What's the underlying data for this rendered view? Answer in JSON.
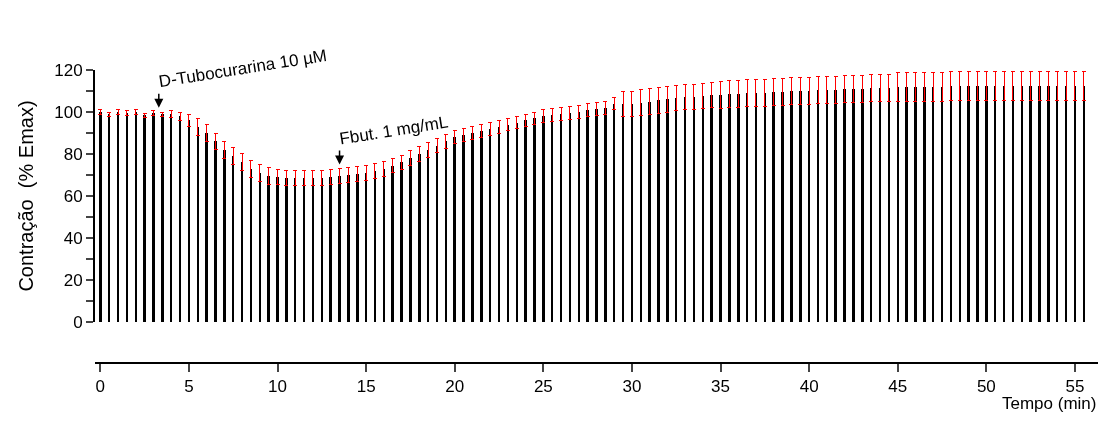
{
  "chart_data": {
    "type": "bar",
    "xlabel": "Tempo (min)",
    "ylabel": "Contração  (% Emax)",
    "x": [
      0,
      0.5,
      1,
      1.5,
      2,
      2.5,
      3,
      3.5,
      4,
      4.5,
      5,
      5.5,
      6,
      6.5,
      7,
      7.5,
      8,
      8.5,
      9,
      9.5,
      10,
      10.5,
      11,
      11.5,
      12,
      12.5,
      13,
      13.5,
      14,
      14.5,
      15,
      15.5,
      16,
      16.5,
      17,
      17.5,
      18,
      18.5,
      19,
      19.5,
      20,
      20.5,
      21,
      21.5,
      22,
      22.5,
      23,
      23.5,
      24,
      24.5,
      25,
      25.5,
      26,
      26.5,
      27,
      27.5,
      28,
      28.5,
      29,
      29.5,
      30,
      30.5,
      31,
      31.5,
      32,
      32.5,
      33,
      33.5,
      34,
      34.5,
      35,
      35.5,
      36,
      36.5,
      37,
      37.5,
      38,
      38.5,
      39,
      39.5,
      40,
      40.5,
      41,
      41.5,
      42,
      42.5,
      43,
      43.5,
      44,
      44.5,
      45,
      45.5,
      46,
      46.5,
      47,
      47.5,
      48,
      48.5,
      49,
      49.5,
      50,
      50.5,
      51,
      51.5,
      52,
      52.5,
      53,
      53.5,
      54,
      54.5,
      55,
      55.5
    ],
    "series": [
      {
        "color": "#000000",
        "values": [
          100,
          99,
          100,
          99.5,
          100,
          98.5,
          99.5,
          99,
          99,
          98,
          96,
          93,
          90,
          86,
          82,
          79,
          76,
          73,
          71,
          69.5,
          69,
          68.5,
          68.5,
          68.5,
          68.5,
          68.5,
          69,
          69.5,
          70,
          70.5,
          71,
          72,
          73,
          74.5,
          76,
          78,
          80,
          82,
          84,
          86,
          88,
          89,
          90,
          91,
          92,
          93,
          94,
          95,
          96,
          97,
          98,
          98.5,
          99,
          99.5,
          100,
          101,
          101.5,
          102,
          104,
          104,
          104,
          104.5,
          105,
          105.5,
          106,
          106.5,
          107,
          107,
          107.5,
          108,
          108,
          108.5,
          108.5,
          109,
          109,
          109,
          109.5,
          109.5,
          110,
          110,
          110,
          110.5,
          110.5,
          110.5,
          111,
          111,
          111,
          111.5,
          111.5,
          111.5,
          112,
          112,
          112,
          112,
          112,
          112,
          112.5,
          112.5,
          112.5,
          112.5,
          112.5,
          112.5,
          112.5,
          112.5,
          112.5,
          112.5,
          112.5,
          112.5,
          112.5,
          112.5,
          112.5,
          112.5
        ],
        "errors": [
          1,
          1,
          1,
          1,
          1,
          1,
          1,
          1,
          1.5,
          2,
          3,
          4,
          4,
          4,
          4,
          4,
          4,
          4,
          4,
          4,
          3.5,
          3.5,
          3.5,
          3.5,
          3.5,
          3.5,
          3.5,
          3.5,
          3.5,
          3.5,
          3.5,
          3.5,
          3.5,
          3.5,
          3.5,
          3.5,
          3.5,
          3.5,
          3.5,
          3.5,
          3,
          3,
          3,
          3,
          3,
          3,
          3,
          3,
          3,
          3,
          3,
          3,
          3,
          3,
          3,
          3,
          3,
          3,
          3,
          6,
          6,
          6,
          6,
          6,
          6,
          6,
          6,
          6,
          6,
          6,
          6.5,
          6.5,
          6.5,
          6.5,
          6.5,
          6.5,
          6.5,
          6.5,
          6.5,
          6.5,
          6.5,
          6.5,
          6.5,
          6.5,
          6.5,
          6.5,
          6.5,
          6.5,
          6.5,
          6.5,
          7,
          7,
          7,
          7,
          7,
          7,
          7,
          7,
          7,
          7,
          7,
          7,
          7,
          7,
          7,
          7,
          7,
          7,
          7,
          7,
          7,
          7
        ],
        "name": null
      }
    ],
    "annotations": [
      {
        "text": "D-Tubocurarina 10 µM",
        "x": 3.3,
        "y": 102
      },
      {
        "text": "Fbut. 1 mg/mL",
        "x": 13.5,
        "y": 75
      }
    ],
    "xlim": [
      -0.3,
      56.3
    ],
    "xticks": [
      0,
      5,
      10,
      15,
      20,
      25,
      30,
      35,
      40,
      45,
      50,
      55
    ],
    "ylim": [
      0,
      120
    ],
    "yticks": [
      0,
      {
        "value": 10,
        "label": null
      },
      20,
      {
        "value": 30,
        "label": null
      },
      40,
      {
        "value": 50,
        "label": null
      },
      60,
      {
        "value": 70,
        "label": null
      },
      80,
      {
        "value": 90,
        "label": null
      },
      100,
      {
        "value": 110,
        "label": null
      },
      120
    ],
    "legend": false
  }
}
